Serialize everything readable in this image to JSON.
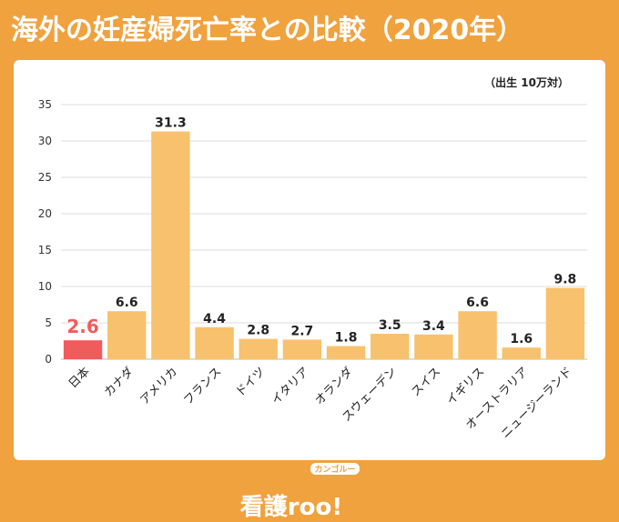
{
  "page": {
    "title": "海外の妊産婦死亡率との比較（2020年）"
  },
  "chart_data": {
    "type": "bar",
    "unit_label": "（出生 10万対）",
    "categories": [
      "日本",
      "カナダ",
      "アメリカ",
      "フランス",
      "ドイツ",
      "イタリア",
      "オランダ",
      "スウェーデン",
      "スイス",
      "イギリス",
      "オーストラリア",
      "ニュージーランド"
    ],
    "values": [
      2.6,
      6.6,
      31.3,
      4.4,
      2.8,
      2.7,
      1.8,
      3.5,
      3.4,
      6.6,
      1.6,
      9.8
    ],
    "value_labels": [
      "2.6",
      "6.6",
      "31.3",
      "4.4",
      "2.8",
      "2.7",
      "1.8",
      "3.5",
      "3.4",
      "6.6",
      "1.6",
      "9.8"
    ],
    "highlight_index": 0,
    "ylim": [
      0,
      35
    ],
    "yticks": [
      0,
      5,
      10,
      15,
      20,
      25,
      30,
      35
    ],
    "ytick_labels": [
      "0",
      "5",
      "10",
      "15",
      "20",
      "25",
      "30",
      "35"
    ],
    "grid": true,
    "colors": {
      "bar": "#F8C16E",
      "highlight": "#F05C5C",
      "highlight_label": "#F05C5C",
      "grid": "#DDDDDD",
      "background": "#F0A23E"
    }
  },
  "brand": {
    "name": "看護roo!",
    "kana": "カンゴルー"
  }
}
